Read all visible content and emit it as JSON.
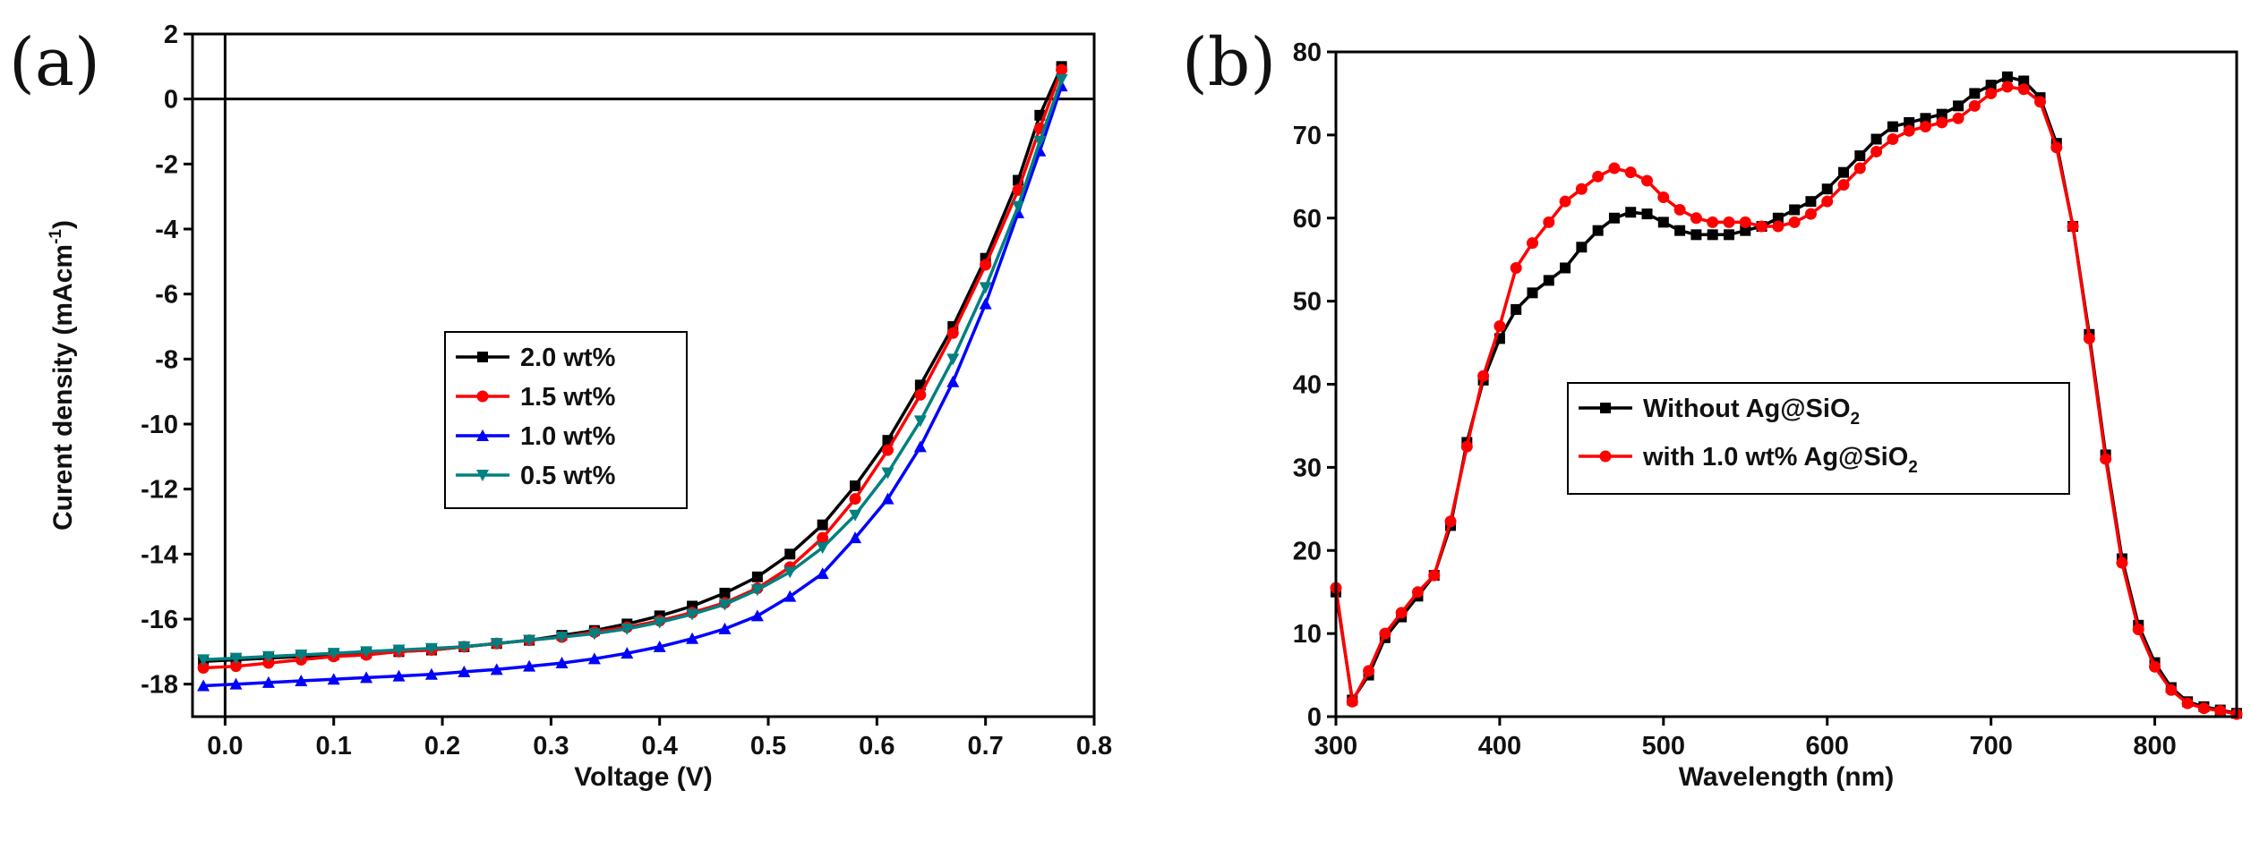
{
  "chart_data": [
    {
      "panel": "(a)",
      "type": "line",
      "xlabel": "Voltage (V)",
      "ylabel": "Curent density (mAcm",
      "ylabel_sup": "-1",
      "ylabel_tail": ")",
      "xlim": [
        -0.03,
        0.8
      ],
      "ylim": [
        -19,
        2
      ],
      "xticks": [
        0.0,
        0.1,
        0.2,
        0.3,
        0.4,
        0.5,
        0.6,
        0.7,
        0.8
      ],
      "yticks": [
        2,
        0,
        -2,
        -4,
        -6,
        -8,
        -10,
        -12,
        -14,
        -16,
        -18
      ],
      "xtick_labels": [
        "0.0",
        "0.1",
        "0.2",
        "0.3",
        "0.4",
        "0.5",
        "0.6",
        "0.7",
        "0.8"
      ],
      "ytick_labels": [
        "2",
        "0",
        "-2",
        "-4",
        "-6",
        "-8",
        "-10",
        "-12",
        "-14",
        "-16",
        "-18"
      ],
      "reference_lines": {
        "x": 0,
        "y": 0
      },
      "legend": "center",
      "series": [
        {
          "name": "2.0 wt%",
          "color": "#000000",
          "marker": "square",
          "x": [
            -0.02,
            0.01,
            0.04,
            0.07,
            0.1,
            0.13,
            0.16,
            0.19,
            0.22,
            0.25,
            0.28,
            0.31,
            0.34,
            0.37,
            0.4,
            0.43,
            0.46,
            0.49,
            0.52,
            0.55,
            0.58,
            0.61,
            0.64,
            0.67,
            0.7,
            0.73,
            0.75,
            0.77
          ],
          "y": [
            -17.3,
            -17.25,
            -17.2,
            -17.15,
            -17.1,
            -17.05,
            -17.0,
            -16.95,
            -16.85,
            -16.75,
            -16.65,
            -16.5,
            -16.35,
            -16.15,
            -15.9,
            -15.6,
            -15.2,
            -14.7,
            -14.0,
            -13.1,
            -11.9,
            -10.5,
            -8.8,
            -7.0,
            -4.9,
            -2.5,
            -0.5,
            1.0
          ]
        },
        {
          "name": "1.5 wt%",
          "color": "#ff0000",
          "marker": "circle",
          "x": [
            -0.02,
            0.01,
            0.04,
            0.07,
            0.1,
            0.13,
            0.16,
            0.19,
            0.22,
            0.25,
            0.28,
            0.31,
            0.34,
            0.37,
            0.4,
            0.43,
            0.46,
            0.49,
            0.52,
            0.55,
            0.58,
            0.61,
            0.64,
            0.67,
            0.7,
            0.73,
            0.75,
            0.77
          ],
          "y": [
            -17.5,
            -17.45,
            -17.35,
            -17.25,
            -17.15,
            -17.1,
            -17.0,
            -16.95,
            -16.85,
            -16.75,
            -16.65,
            -16.55,
            -16.4,
            -16.25,
            -16.05,
            -15.8,
            -15.5,
            -15.05,
            -14.4,
            -13.5,
            -12.3,
            -10.8,
            -9.1,
            -7.2,
            -5.1,
            -2.8,
            -0.9,
            0.9
          ]
        },
        {
          "name": "1.0 wt%",
          "color": "#0000ff",
          "marker": "triangle-up",
          "x": [
            -0.02,
            0.01,
            0.04,
            0.07,
            0.1,
            0.13,
            0.16,
            0.19,
            0.22,
            0.25,
            0.28,
            0.31,
            0.34,
            0.37,
            0.4,
            0.43,
            0.46,
            0.49,
            0.52,
            0.55,
            0.58,
            0.61,
            0.64,
            0.67,
            0.7,
            0.73,
            0.75,
            0.77
          ],
          "y": [
            -18.05,
            -18.0,
            -17.95,
            -17.9,
            -17.85,
            -17.8,
            -17.75,
            -17.7,
            -17.62,
            -17.55,
            -17.45,
            -17.35,
            -17.22,
            -17.05,
            -16.85,
            -16.6,
            -16.3,
            -15.9,
            -15.3,
            -14.6,
            -13.5,
            -12.3,
            -10.7,
            -8.7,
            -6.3,
            -3.5,
            -1.6,
            0.4
          ]
        },
        {
          "name": "0.5 wt%",
          "color": "#008080",
          "marker": "triangle-down",
          "x": [
            -0.02,
            0.01,
            0.04,
            0.07,
            0.1,
            0.13,
            0.16,
            0.19,
            0.22,
            0.25,
            0.28,
            0.31,
            0.34,
            0.37,
            0.4,
            0.43,
            0.46,
            0.49,
            0.52,
            0.55,
            0.58,
            0.61,
            0.64,
            0.67,
            0.7,
            0.73,
            0.75,
            0.77
          ],
          "y": [
            -17.25,
            -17.2,
            -17.15,
            -17.1,
            -17.05,
            -17.0,
            -16.95,
            -16.9,
            -16.85,
            -16.75,
            -16.65,
            -16.55,
            -16.45,
            -16.3,
            -16.1,
            -15.85,
            -15.55,
            -15.1,
            -14.55,
            -13.8,
            -12.8,
            -11.5,
            -9.9,
            -8.0,
            -5.8,
            -3.3,
            -1.3,
            0.6
          ]
        }
      ]
    },
    {
      "panel": "(b)",
      "type": "line",
      "xlabel": "Wavelength (nm)",
      "ylabel": "",
      "xlim": [
        300,
        850
      ],
      "ylim": [
        0,
        80
      ],
      "xticks": [
        300,
        400,
        500,
        600,
        700,
        800
      ],
      "yticks": [
        0,
        10,
        20,
        30,
        40,
        50,
        60,
        70,
        80
      ],
      "xtick_labels": [
        "300",
        "400",
        "500",
        "600",
        "700",
        "800"
      ],
      "ytick_labels": [
        "0",
        "10",
        "20",
        "30",
        "40",
        "50",
        "60",
        "70",
        "80"
      ],
      "legend": "center-left",
      "series": [
        {
          "name": "Without Ag@SiO",
          "name_sub": "2",
          "color": "#000000",
          "marker": "square",
          "x": [
            300,
            310,
            320,
            330,
            340,
            350,
            360,
            370,
            380,
            390,
            400,
            410,
            420,
            430,
            440,
            450,
            460,
            470,
            480,
            490,
            500,
            510,
            520,
            530,
            540,
            550,
            560,
            570,
            580,
            590,
            600,
            610,
            620,
            630,
            640,
            650,
            660,
            670,
            680,
            690,
            700,
            710,
            720,
            730,
            740,
            750,
            760,
            770,
            780,
            790,
            800,
            810,
            820,
            830,
            840,
            850
          ],
          "y": [
            15,
            2,
            5,
            9.5,
            12,
            14.5,
            17,
            23,
            33,
            40.5,
            45.5,
            49,
            51,
            52.5,
            54,
            56.5,
            58.5,
            60,
            60.7,
            60.5,
            59.5,
            58.5,
            58,
            58,
            58,
            58.5,
            59,
            60,
            61,
            62,
            63.5,
            65.5,
            67.5,
            69.5,
            71,
            71.5,
            72,
            72.5,
            73.5,
            75,
            76,
            77,
            76.5,
            74.5,
            69,
            59,
            46,
            31.5,
            19,
            11,
            6.5,
            3.5,
            1.8,
            1.2,
            0.8,
            0.4
          ]
        },
        {
          "name": "with 1.0 wt% Ag@SiO",
          "name_sub": "2",
          "color": "#ff0000",
          "marker": "circle",
          "x": [
            300,
            310,
            320,
            330,
            340,
            350,
            360,
            370,
            380,
            390,
            400,
            410,
            420,
            430,
            440,
            450,
            460,
            470,
            480,
            490,
            500,
            510,
            520,
            530,
            540,
            550,
            560,
            570,
            580,
            590,
            600,
            610,
            620,
            630,
            640,
            650,
            660,
            670,
            680,
            690,
            700,
            710,
            720,
            730,
            740,
            750,
            760,
            770,
            780,
            790,
            800,
            810,
            820,
            830,
            840,
            850
          ],
          "y": [
            15.5,
            1.8,
            5.5,
            10,
            12.5,
            15,
            17,
            23.5,
            32.5,
            41,
            47,
            54,
            57,
            59.5,
            62,
            63.5,
            65,
            66,
            65.5,
            64.5,
            62.5,
            61,
            60,
            59.5,
            59.5,
            59.5,
            59,
            59,
            59.5,
            60.5,
            62,
            64,
            66,
            68,
            69.5,
            70.5,
            71,
            71.5,
            72,
            73.5,
            75,
            75.8,
            75.5,
            74,
            68.5,
            59,
            45.5,
            31,
            18.5,
            10.5,
            6,
            3.2,
            1.6,
            1,
            0.7,
            0.3
          ]
        }
      ]
    }
  ]
}
